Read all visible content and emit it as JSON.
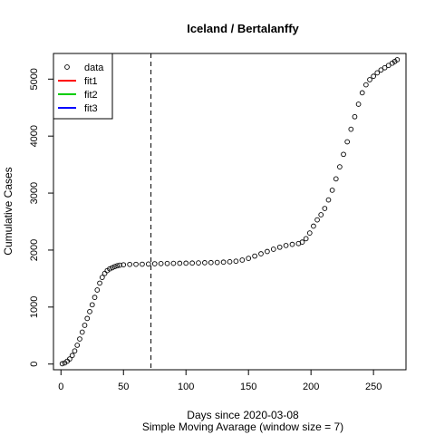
{
  "chart_data": {
    "type": "scatter",
    "title": "Iceland / Bertalanffy",
    "xlabel": "Days since 2020-03-08",
    "subtitle": "Simple Moving Avarage (window size = 7)",
    "ylabel": "Cumulative Cases",
    "xlim": [
      -6,
      276
    ],
    "ylim": [
      -100,
      5450
    ],
    "x_ticks": [
      0,
      50,
      100,
      150,
      200,
      250
    ],
    "y_ticks": [
      0,
      1000,
      2000,
      3000,
      4000,
      5000
    ],
    "vline_x": 72,
    "legend": {
      "position": "top-left",
      "entries": [
        {
          "label": "data",
          "marker": "circle",
          "color": "#000000"
        },
        {
          "label": "fit1",
          "marker": "line",
          "color": "#ff0000"
        },
        {
          "label": "fit2",
          "marker": "line",
          "color": "#00cd00"
        },
        {
          "label": "fit3",
          "marker": "line",
          "color": "#0000ff"
        }
      ]
    },
    "series": [
      {
        "name": "data",
        "points": [
          [
            1,
            5
          ],
          [
            3,
            20
          ],
          [
            5,
            50
          ],
          [
            7,
            90
          ],
          [
            9,
            150
          ],
          [
            11,
            230
          ],
          [
            13,
            330
          ],
          [
            15,
            440
          ],
          [
            17,
            560
          ],
          [
            19,
            680
          ],
          [
            21,
            800
          ],
          [
            23,
            920
          ],
          [
            25,
            1040
          ],
          [
            27,
            1170
          ],
          [
            29,
            1300
          ],
          [
            31,
            1420
          ],
          [
            33,
            1520
          ],
          [
            35,
            1590
          ],
          [
            37,
            1640
          ],
          [
            39,
            1670
          ],
          [
            41,
            1690
          ],
          [
            43,
            1710
          ],
          [
            45,
            1725
          ],
          [
            47,
            1735
          ],
          [
            50,
            1742
          ],
          [
            55,
            1748
          ],
          [
            60,
            1750
          ],
          [
            65,
            1752
          ],
          [
            70,
            1755
          ],
          [
            75,
            1760
          ],
          [
            80,
            1763
          ],
          [
            85,
            1765
          ],
          [
            90,
            1767
          ],
          [
            95,
            1768
          ],
          [
            100,
            1770
          ],
          [
            105,
            1772
          ],
          [
            110,
            1775
          ],
          [
            115,
            1778
          ],
          [
            120,
            1780
          ],
          [
            125,
            1783
          ],
          [
            130,
            1788
          ],
          [
            135,
            1795
          ],
          [
            140,
            1805
          ],
          [
            145,
            1825
          ],
          [
            150,
            1855
          ],
          [
            155,
            1895
          ],
          [
            160,
            1935
          ],
          [
            165,
            1975
          ],
          [
            170,
            2015
          ],
          [
            175,
            2050
          ],
          [
            180,
            2080
          ],
          [
            185,
            2100
          ],
          [
            190,
            2115
          ],
          [
            193,
            2140
          ],
          [
            196,
            2200
          ],
          [
            199,
            2300
          ],
          [
            202,
            2420
          ],
          [
            205,
            2530
          ],
          [
            208,
            2620
          ],
          [
            211,
            2730
          ],
          [
            214,
            2880
          ],
          [
            217,
            3050
          ],
          [
            220,
            3250
          ],
          [
            223,
            3460
          ],
          [
            226,
            3680
          ],
          [
            229,
            3900
          ],
          [
            232,
            4120
          ],
          [
            235,
            4340
          ],
          [
            238,
            4560
          ],
          [
            241,
            4760
          ],
          [
            244,
            4900
          ],
          [
            247,
            4990
          ],
          [
            250,
            5050
          ],
          [
            253,
            5110
          ],
          [
            256,
            5160
          ],
          [
            259,
            5200
          ],
          [
            262,
            5240
          ],
          [
            265,
            5280
          ],
          [
            267,
            5310
          ],
          [
            269,
            5340
          ]
        ]
      }
    ]
  }
}
